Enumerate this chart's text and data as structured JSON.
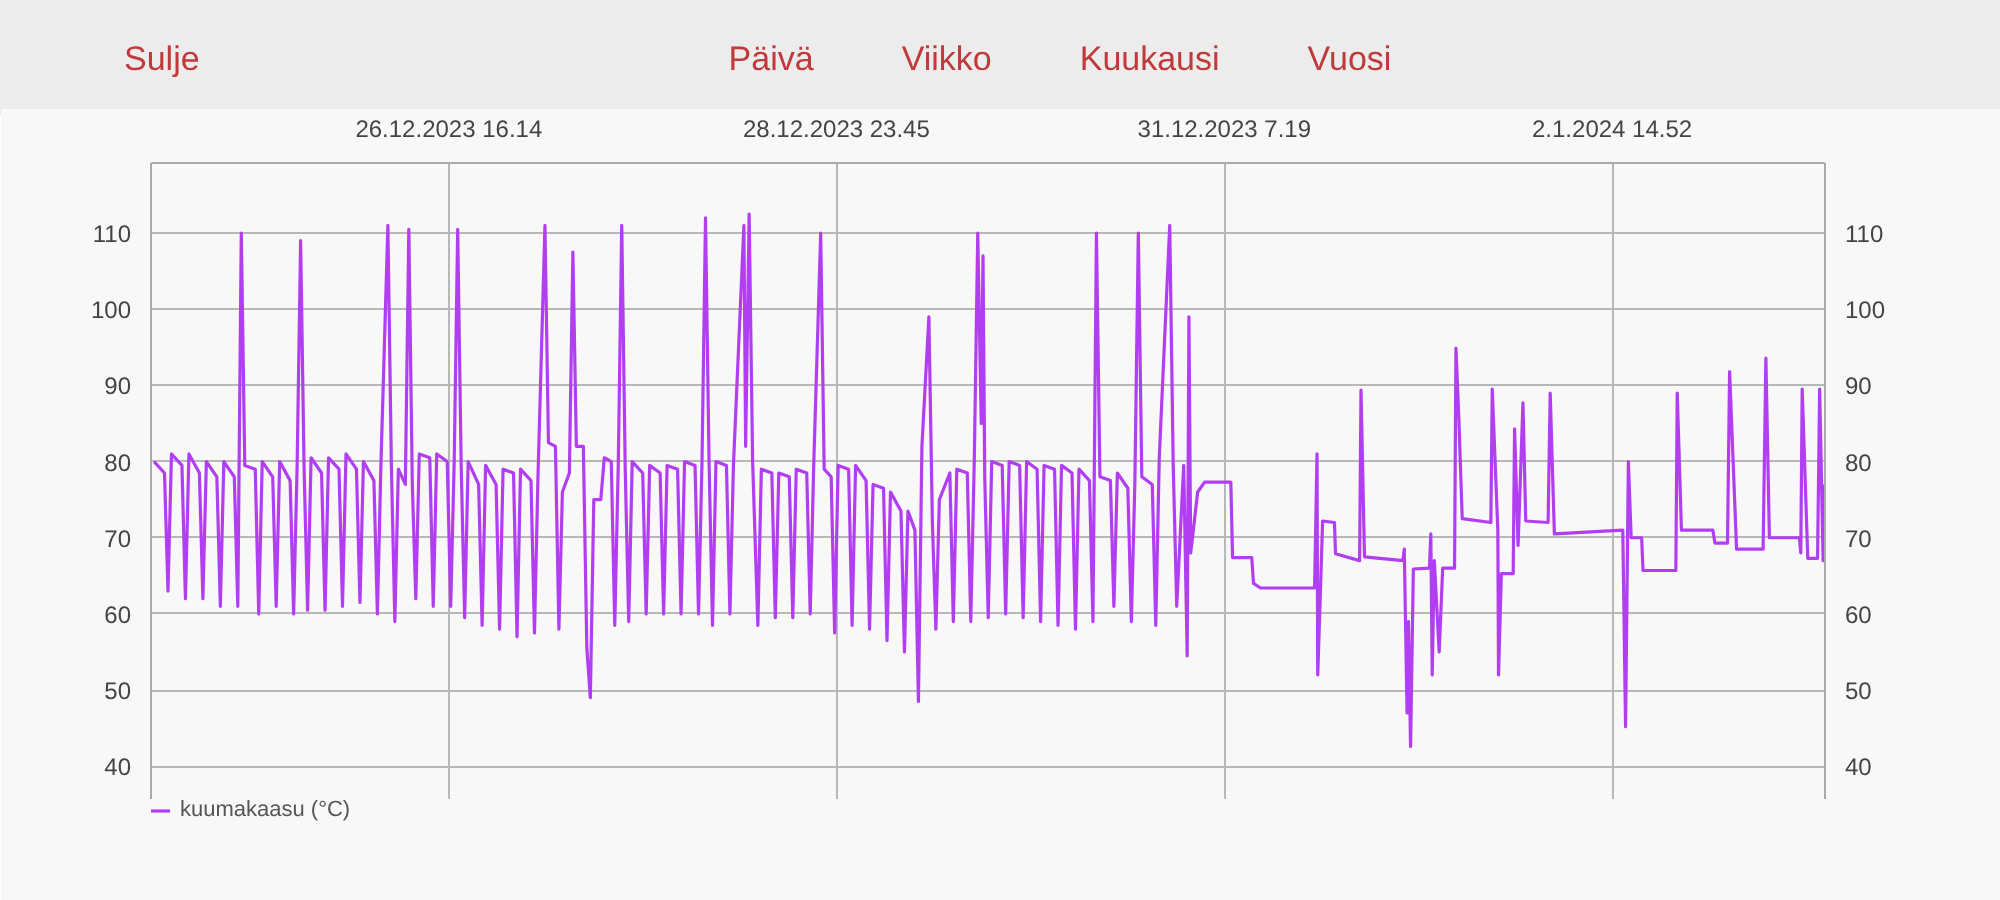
{
  "chart_data": {
    "type": "line",
    "annotations": [
      "Sulje",
      "Päivä",
      "Viikko",
      "Kuukausi",
      "Vuosi"
    ],
    "xlim": [
      "2023-12-24T21:34",
      "2024-01-03T21:22"
    ],
    "xticks": [
      {
        "value": "2023-12-26T16:14",
        "label": "26.12.2023 16.14"
      },
      {
        "value": "2023-12-28T23:45",
        "label": "28.12.2023 23.45"
      },
      {
        "value": "2023-12-31T07:19",
        "label": "31.12.2023 7.19"
      },
      {
        "value": "2024-01-02T14:52",
        "label": "2.1.2024 14.52"
      }
    ],
    "ylim": [
      35.7,
      119.2
    ],
    "yticks": [
      40,
      50,
      60,
      70,
      80,
      90,
      100,
      110
    ],
    "y2lim": [
      35.7,
      119.2
    ],
    "y2ticks": [
      40,
      50,
      60,
      70,
      80,
      90,
      100,
      110
    ],
    "grid": true,
    "legend": "bottom left",
    "series": [
      {
        "name": "kuumakaasu (°C)",
        "color": "#b23ef2",
        "x": [
          "2023-12-24T22:00",
          "2023-12-24T23:30",
          "2023-12-25T00:00",
          "2023-12-25T00:30",
          "2023-12-25T02:00",
          "2023-12-25T02:30",
          "2023-12-25T03:00",
          "2023-12-25T04:30",
          "2023-12-25T05:00",
          "2023-12-25T05:30",
          "2023-12-25T07:00",
          "2023-12-25T07:30",
          "2023-12-25T08:00",
          "2023-12-25T09:30",
          "2023-12-25T10:00",
          "2023-12-25T10:30",
          "2023-12-25T11:00",
          "2023-12-25T12:30",
          "2023-12-25T13:00",
          "2023-12-25T13:30",
          "2023-12-25T15:00",
          "2023-12-25T15:30",
          "2023-12-25T16:00",
          "2023-12-25T17:30",
          "2023-12-25T18:00",
          "2023-12-25T18:30",
          "2023-12-25T19:00",
          "2023-12-25T19:30",
          "2023-12-25T20:00",
          "2023-12-25T20:30",
          "2023-12-25T22:00",
          "2023-12-25T22:30",
          "2023-12-25T23:00",
          "2023-12-26T00:30",
          "2023-12-26T01:00",
          "2023-12-26T01:30",
          "2023-12-26T03:00",
          "2023-12-26T03:30",
          "2023-12-26T04:00",
          "2023-12-26T05:30",
          "2023-12-26T06:00",
          "2023-12-26T06:30",
          "2023-12-26T07:30",
          "2023-12-26T08:00",
          "2023-12-26T08:30",
          "2023-12-26T09:00",
          "2023-12-26T10:00",
          "2023-12-26T10:30",
          "2023-12-26T11:00",
          "2023-12-26T11:30",
          "2023-12-26T12:00",
          "2023-12-26T13:30",
          "2023-12-26T14:00",
          "2023-12-26T14:30",
          "2023-12-26T16:00",
          "2023-12-26T16:30",
          "2023-12-26T17:00",
          "2023-12-26T17:30",
          "2023-12-26T18:00",
          "2023-12-26T18:30",
          "2023-12-26T19:00",
          "2023-12-26T20:30",
          "2023-12-26T21:00",
          "2023-12-26T21:30",
          "2023-12-26T23:00",
          "2023-12-26T23:30",
          "2023-12-27T00:00",
          "2023-12-27T01:30",
          "2023-12-27T02:00",
          "2023-12-27T02:30",
          "2023-12-27T04:00",
          "2023-12-27T04:30",
          "2023-12-27T05:00",
          "2023-12-27T06:00",
          "2023-12-27T06:30",
          "2023-12-27T07:30",
          "2023-12-27T08:00",
          "2023-12-27T08:30",
          "2023-12-27T09:30",
          "2023-12-27T10:00",
          "2023-12-27T10:30",
          "2023-12-27T11:30",
          "2023-12-27T12:00",
          "2023-12-27T12:30",
          "2023-12-27T13:00",
          "2023-12-27T14:00",
          "2023-12-27T14:30",
          "2023-12-27T15:30",
          "2023-12-27T16:00",
          "2023-12-27T16:30",
          "2023-12-27T17:00",
          "2023-12-27T17:30",
          "2023-12-27T18:00",
          "2023-12-27T18:30",
          "2023-12-27T20:00",
          "2023-12-27T20:30",
          "2023-12-27T21:00",
          "2023-12-27T22:30",
          "2023-12-27T23:00",
          "2023-12-27T23:30",
          "2023-12-28T01:00",
          "2023-12-28T01:30",
          "2023-12-28T02:00",
          "2023-12-28T03:30",
          "2023-12-28T04:00",
          "2023-12-28T04:30",
          "2023-12-28T05:00",
          "2023-12-28T05:30",
          "2023-12-28T06:00",
          "2023-12-28T06:30",
          "2023-12-28T08:00",
          "2023-12-28T08:30",
          "2023-12-28T09:00",
          "2023-12-28T10:30",
          "2023-12-28T10:45",
          "2023-12-28T11:15",
          "2023-12-28T11:45",
          "2023-12-28T12:30",
          "2023-12-28T13:00",
          "2023-12-28T14:30",
          "2023-12-28T15:00",
          "2023-12-28T15:30",
          "2023-12-28T17:00",
          "2023-12-28T17:30",
          "2023-12-28T18:00",
          "2023-12-28T19:30",
          "2023-12-28T20:00",
          "2023-12-28T20:30",
          "2023-12-28T21:30",
          "2023-12-28T22:00",
          "2023-12-28T23:00",
          "2023-12-28T23:30",
          "2023-12-29T00:00",
          "2023-12-29T01:30",
          "2023-12-29T02:00",
          "2023-12-29T02:30",
          "2023-12-29T04:00",
          "2023-12-29T04:30",
          "2023-12-29T05:00",
          "2023-12-29T06:30",
          "2023-12-29T07:00",
          "2023-12-29T07:30",
          "2023-12-29T09:00",
          "2023-12-29T09:30",
          "2023-12-29T10:00",
          "2023-12-29T11:00",
          "2023-12-29T11:30",
          "2023-12-29T12:00",
          "2023-12-29T13:00",
          "2023-12-29T13:30",
          "2023-12-29T14:00",
          "2023-12-29T14:30",
          "2023-12-29T16:00",
          "2023-12-29T16:30",
          "2023-12-29T17:00",
          "2023-12-29T18:30",
          "2023-12-29T19:00",
          "2023-12-29T19:30",
          "2023-12-29T20:00",
          "2023-12-29T20:30",
          "2023-12-29T20:45",
          "2023-12-29T21:00",
          "2023-12-29T21:30",
          "2023-12-29T22:00",
          "2023-12-29T23:30",
          "2023-12-30T00:00",
          "2023-12-30T00:30",
          "2023-12-30T02:00",
          "2023-12-30T02:30",
          "2023-12-30T03:00",
          "2023-12-30T04:30",
          "2023-12-30T05:00",
          "2023-12-30T05:30",
          "2023-12-30T07:00",
          "2023-12-30T07:30",
          "2023-12-30T08:00",
          "2023-12-30T09:30",
          "2023-12-30T10:00",
          "2023-12-30T10:30",
          "2023-12-30T12:00",
          "2023-12-30T12:30",
          "2023-12-30T13:00",
          "2023-12-30T13:30",
          "2023-12-30T15:00",
          "2023-12-30T15:30",
          "2023-12-30T16:00",
          "2023-12-30T17:30",
          "2023-12-30T18:00",
          "2023-12-30T18:30",
          "2023-12-30T19:00",
          "2023-12-30T19:30",
          "2023-12-30T21:00",
          "2023-12-30T21:30",
          "2023-12-30T22:00",
          "2023-12-30T23:30",
          "2023-12-31T00:00",
          "2023-12-31T00:30",
          "2023-12-31T01:30",
          "2023-12-31T02:00",
          "2023-12-31T02:15",
          "2023-12-31T02:30",
          "2023-12-31T03:00",
          "2023-12-31T03:30",
          "2023-12-31T04:30",
          "2023-12-31T08:15",
          "2023-12-31T08:30",
          "2023-12-31T11:15",
          "2023-12-31T11:30",
          "2023-12-31T12:30",
          "2023-12-31T20:15",
          "2023-12-31T20:36",
          "2023-12-31T20:42",
          "2023-12-31T21:00",
          "2023-12-31T21:24",
          "2023-12-31T23:06",
          "2023-12-31T23:15",
          "2024-01-01T02:42",
          "2024-01-01T02:54",
          "2024-01-01T03:24",
          "2024-01-01T08:54",
          "2024-01-01T09:06",
          "2024-01-01T09:30",
          "2024-01-01T09:42",
          "2024-01-01T10:00",
          "2024-01-01T10:24",
          "2024-01-01T12:42",
          "2024-01-01T12:54",
          "2024-01-01T13:06",
          "2024-01-01T13:24",
          "2024-01-01T14:06",
          "2024-01-01T14:36",
          "2024-01-01T16:18",
          "2024-01-01T16:30",
          "2024-01-01T16:54",
          "2024-01-01T17:24",
          "2024-01-01T21:30",
          "2024-01-01T21:42",
          "2024-01-01T22:30",
          "2024-01-01T22:36",
          "2024-01-01T23:00",
          "2024-01-02T00:42",
          "2024-01-02T00:54",
          "2024-01-02T01:24",
          "2024-01-02T02:06",
          "2024-01-02T02:30",
          "2024-01-02T05:42",
          "2024-01-02T06:00",
          "2024-01-02T06:36",
          "2024-01-02T16:24",
          "2024-01-02T16:48",
          "2024-01-02T17:12",
          "2024-01-02T17:36",
          "2024-01-02T19:06",
          "2024-01-02T19:18",
          "2024-01-03T00:00",
          "2024-01-03T00:12",
          "2024-01-03T00:48",
          "2024-01-03T05:18",
          "2024-01-03T05:36",
          "2024-01-03T07:24",
          "2024-01-03T07:42",
          "2024-01-03T08:42",
          "2024-01-03T12:30",
          "2024-01-03T12:54",
          "2024-01-03T13:24",
          "2024-01-03T17:42",
          "2024-01-03T17:54",
          "2024-01-03T18:06",
          "2024-01-03T18:54",
          "2024-01-03T20:18",
          "2024-01-03T20:36",
          "2024-01-03T21:06",
          "2024-01-03T21:18"
        ],
        "values": [
          80,
          78.5,
          63,
          81,
          79.5,
          62,
          81,
          78.5,
          62,
          80,
          78,
          61,
          80,
          78,
          61,
          110,
          79.5,
          79,
          60,
          80,
          78,
          61,
          80,
          77.5,
          60,
          79.5,
          109,
          79,
          60.5,
          80.5,
          78.5,
          60.5,
          80.5,
          79,
          61,
          81,
          79,
          61.5,
          80,
          77.5,
          60,
          79.5,
          111,
          79.5,
          59,
          79,
          77,
          110.5,
          77,
          62,
          81,
          80.5,
          61,
          81,
          80,
          61,
          80,
          110.5,
          79.5,
          59.5,
          80,
          77,
          58.5,
          79.5,
          77,
          58,
          79,
          78.5,
          57,
          79,
          77.5,
          57.5,
          78,
          111,
          82.5,
          82,
          58,
          76,
          78.5,
          107.5,
          82,
          82,
          55.5,
          49,
          75,
          75,
          80.5,
          80,
          58.5,
          79.5,
          111,
          79,
          59,
          80,
          78.5,
          60,
          79.5,
          78.5,
          60,
          79.5,
          79,
          60,
          80,
          79.5,
          60,
          80,
          112,
          80.5,
          58.5,
          80,
          79.5,
          60,
          79.5,
          111,
          82,
          112.5,
          80,
          58.5,
          79,
          78.5,
          59.5,
          78.5,
          78,
          59.5,
          79,
          78.5,
          60,
          79.5,
          110,
          79,
          78,
          57.5,
          79.5,
          79,
          58.5,
          79.5,
          77.5,
          58,
          77,
          76.5,
          56.5,
          76,
          73.5,
          55,
          73.5,
          71,
          48.5,
          82,
          99,
          72,
          58,
          75,
          78.5,
          59,
          79,
          78.5,
          59,
          80,
          110,
          85,
          107,
          78,
          59.5,
          80,
          79.5,
          60,
          80,
          79.5,
          59.5,
          80,
          79,
          59,
          79.5,
          79,
          58.5,
          79.5,
          78.5,
          58,
          79,
          77.5,
          59,
          110,
          78,
          77.5,
          61,
          78.5,
          76.5,
          59,
          77,
          110,
          78,
          77,
          58.5,
          80.5,
          111,
          79.5,
          61,
          79.5,
          54.5,
          99,
          68,
          72,
          76,
          77.3,
          77.3,
          67.4,
          67.4,
          64,
          63.4,
          63.4,
          81,
          52,
          60.5,
          72.2,
          72,
          67.9,
          67,
          89.4,
          67.5,
          67,
          68.5,
          47,
          59,
          42.6,
          65.9,
          66,
          70.5,
          52,
          67,
          55,
          66,
          66,
          94.9,
          86,
          72.5,
          72,
          89.5,
          71,
          52,
          65.3,
          65.3,
          84.3,
          69,
          87.7,
          72.2,
          72,
          89,
          70.5,
          71,
          45.2,
          80,
          70,
          70,
          65.7,
          65.7,
          89,
          71,
          71,
          69.3,
          69.3,
          91.8,
          68.5,
          68.5,
          93.6,
          70,
          70,
          68,
          89.5,
          67.3,
          67.3,
          89.5,
          67,
          77
        ]
      }
    ]
  }
}
